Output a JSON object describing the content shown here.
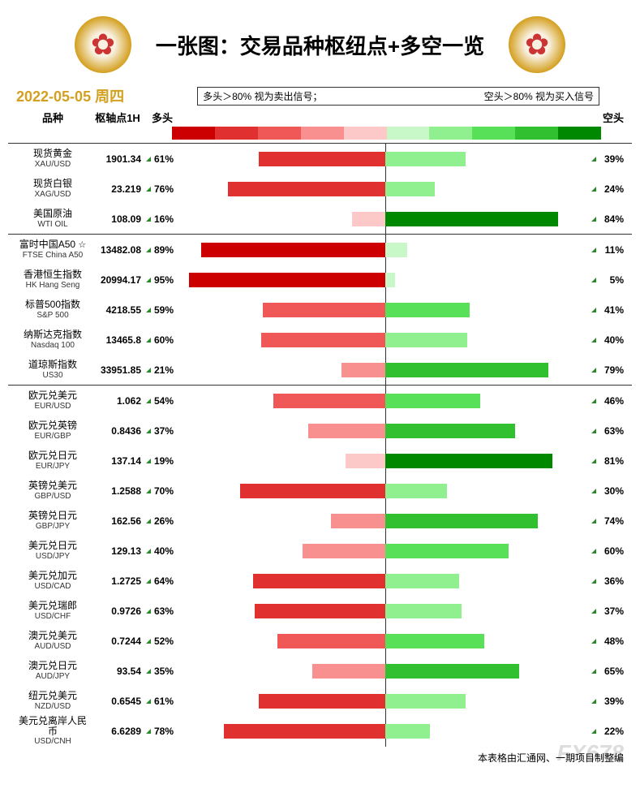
{
  "title": "一张图：交易品种枢纽点+多空一览",
  "date": "2022-05-05",
  "weekday": "周四",
  "date_color": "#d4a020",
  "legend_left": "多头＞80% 视为卖出信号；",
  "legend_right": "空头＞80% 视为买入信号",
  "headers": {
    "name": "品种",
    "pivot": "枢轴点1H",
    "bull": "多头",
    "bear": "空头"
  },
  "gradient_red": [
    "#cc0000",
    "#e03030",
    "#f05858",
    "#f89090",
    "#fcc8c8"
  ],
  "gradient_green": [
    "#c8f8c8",
    "#90f090",
    "#58e058",
    "#30c030",
    "#008800"
  ],
  "footer": "本表格由汇通网、一期项目制整编",
  "watermark": "FX678",
  "chart": {
    "bar_max_width_pct": 50,
    "center_color": "#333333"
  },
  "groups": [
    {
      "rows": [
        {
          "name_cn": "现货黄金",
          "name_en": "XAU/USD",
          "pivot": "1901.34",
          "bull": 61,
          "bear": 39,
          "star": false
        },
        {
          "name_cn": "现货白银",
          "name_en": "XAG/USD",
          "pivot": "23.219",
          "bull": 76,
          "bear": 24,
          "star": false
        },
        {
          "name_cn": "美国原油",
          "name_en": "WTI OIL",
          "pivot": "108.09",
          "bull": 16,
          "bear": 84,
          "star": false
        }
      ]
    },
    {
      "rows": [
        {
          "name_cn": "富时中国A50",
          "name_en": "FTSE China A50",
          "pivot": "13482.08",
          "bull": 89,
          "bear": 11,
          "star": true
        },
        {
          "name_cn": "香港恒生指数",
          "name_en": "HK Hang Seng",
          "pivot": "20994.17",
          "bull": 95,
          "bear": 5,
          "star": false
        },
        {
          "name_cn": "标普500指数",
          "name_en": "S&P 500",
          "pivot": "4218.55",
          "bull": 59,
          "bear": 41,
          "star": false
        },
        {
          "name_cn": "纳斯达克指数",
          "name_en": "Nasdaq 100",
          "pivot": "13465.8",
          "bull": 60,
          "bear": 40,
          "star": false
        },
        {
          "name_cn": "道琼斯指数",
          "name_en": "US30",
          "pivot": "33951.85",
          "bull": 21,
          "bear": 79,
          "star": false
        }
      ]
    },
    {
      "rows": [
        {
          "name_cn": "欧元兑美元",
          "name_en": "EUR/USD",
          "pivot": "1.062",
          "bull": 54,
          "bear": 46,
          "star": false
        },
        {
          "name_cn": "欧元兑英镑",
          "name_en": "EUR/GBP",
          "pivot": "0.8436",
          "bull": 37,
          "bear": 63,
          "star": false
        },
        {
          "name_cn": "欧元兑日元",
          "name_en": "EUR/JPY",
          "pivot": "137.14",
          "bull": 19,
          "bear": 81,
          "star": false
        },
        {
          "name_cn": "英镑兑美元",
          "name_en": "GBP/USD",
          "pivot": "1.2588",
          "bull": 70,
          "bear": 30,
          "star": false
        },
        {
          "name_cn": "英镑兑日元",
          "name_en": "GBP/JPY",
          "pivot": "162.56",
          "bull": 26,
          "bear": 74,
          "star": false
        },
        {
          "name_cn": "美元兑日元",
          "name_en": "USD/JPY",
          "pivot": "129.13",
          "bull": 40,
          "bear": 60,
          "star": false
        },
        {
          "name_cn": "美元兑加元",
          "name_en": "USD/CAD",
          "pivot": "1.2725",
          "bull": 64,
          "bear": 36,
          "star": false
        },
        {
          "name_cn": "美元兑瑞郎",
          "name_en": "USD/CHF",
          "pivot": "0.9726",
          "bull": 63,
          "bear": 37,
          "star": false
        },
        {
          "name_cn": "澳元兑美元",
          "name_en": "AUD/USD",
          "pivot": "0.7244",
          "bull": 52,
          "bear": 48,
          "star": false
        },
        {
          "name_cn": "澳元兑日元",
          "name_en": "AUD/JPY",
          "pivot": "93.54",
          "bull": 35,
          "bear": 65,
          "star": false
        },
        {
          "name_cn": "纽元兑美元",
          "name_en": "NZD/USD",
          "pivot": "0.6545",
          "bull": 61,
          "bear": 39,
          "star": false
        },
        {
          "name_cn": "美元兑离岸人民币",
          "name_en": "USD/CNH",
          "pivot": "6.6289",
          "bull": 78,
          "bear": 22,
          "star": false
        }
      ]
    }
  ],
  "color_scale": {
    "red": {
      "20": "#fcc8c8",
      "40": "#f89090",
      "60": "#f05858",
      "80": "#e03030",
      "100": "#cc0000"
    },
    "green": {
      "20": "#c8f8c8",
      "40": "#90f090",
      "60": "#58e058",
      "80": "#30c030",
      "100": "#008800"
    }
  }
}
